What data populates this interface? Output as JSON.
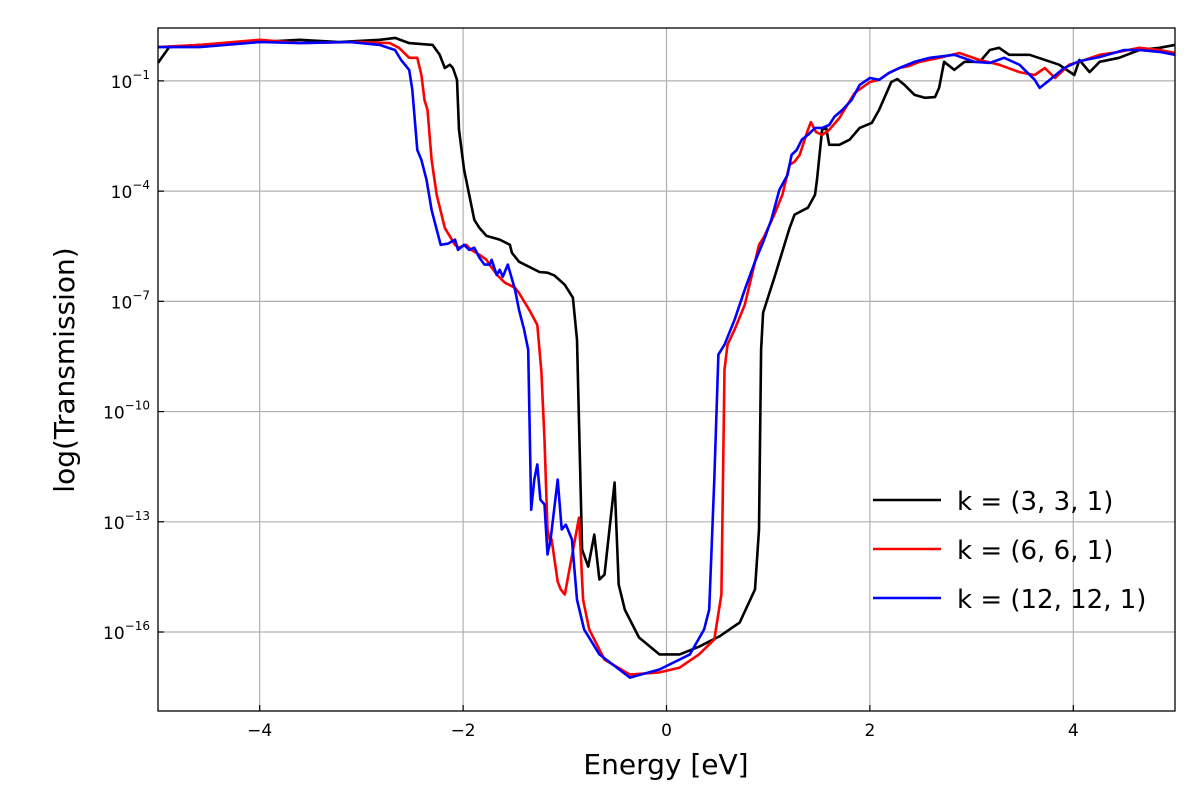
{
  "chart_data": {
    "type": "line",
    "title": "",
    "xlabel": "Energy [eV]",
    "ylabel": "log(Transmission)",
    "xlim": [
      -5,
      5
    ],
    "ylim_log10": [
      -18.15,
      0.44
    ],
    "y_scale": "log",
    "grid": true,
    "legend_placement": "lower-right",
    "x_ticks": [
      {
        "value": -4,
        "label": "−4"
      },
      {
        "value": -2,
        "label": "−2"
      },
      {
        "value": 0,
        "label": "0"
      },
      {
        "value": 2,
        "label": "2"
      },
      {
        "value": 4,
        "label": "4"
      }
    ],
    "y_ticks": [
      {
        "value_log10": -1,
        "base": "10",
        "exp": "−1"
      },
      {
        "value_log10": -4,
        "base": "10",
        "exp": "−4"
      },
      {
        "value_log10": -7,
        "base": "10",
        "exp": "−7"
      },
      {
        "value_log10": -10,
        "base": "10",
        "exp": "−10"
      },
      {
        "value_log10": -13,
        "base": "10",
        "exp": "−13"
      },
      {
        "value_log10": -16,
        "base": "10",
        "exp": "−16"
      }
    ],
    "series": [
      {
        "name": "k = (3, 3, 1)",
        "color": "#000000",
        "x": [
          -5.0,
          -4.89,
          -4.59,
          -4.0,
          -3.61,
          -3.22,
          -2.82,
          -2.67,
          -2.53,
          -2.3,
          -2.23,
          -2.18,
          -2.13,
          -2.1,
          -2.06,
          -2.04,
          -1.99,
          -1.94,
          -1.89,
          -1.84,
          -1.77,
          -1.64,
          -1.54,
          -1.52,
          -1.45,
          -1.25,
          -1.17,
          -1.1,
          -1.0,
          -0.92,
          -0.88,
          -0.83,
          -0.77,
          -0.71,
          -0.66,
          -0.61,
          -0.51,
          -0.47,
          -0.41,
          -0.27,
          -0.07,
          0.13,
          0.32,
          0.52,
          0.72,
          0.87,
          0.91,
          0.93,
          0.95,
          0.99,
          1.06,
          1.21,
          1.26,
          1.39,
          1.46,
          1.48,
          1.53,
          1.57,
          1.6,
          1.7,
          1.8,
          1.9,
          2.02,
          2.09,
          2.21,
          2.27,
          2.34,
          2.44,
          2.54,
          2.64,
          2.68,
          2.73,
          2.83,
          2.93,
          3.08,
          3.18,
          3.27,
          3.37,
          3.57,
          3.86,
          4.01,
          4.06,
          4.16,
          4.26,
          4.45,
          4.65,
          4.85,
          5.0
        ],
        "log10_T": [
          -0.51,
          -0.08,
          -0.02,
          0.06,
          0.12,
          0.06,
          0.12,
          0.17,
          0.03,
          -0.02,
          -0.29,
          -0.65,
          -0.56,
          -0.65,
          -0.97,
          -2.33,
          -3.42,
          -4.1,
          -4.78,
          -5.0,
          -5.22,
          -5.32,
          -5.46,
          -5.68,
          -5.92,
          -6.2,
          -6.22,
          -6.3,
          -6.55,
          -6.9,
          -8.04,
          -13.76,
          -14.22,
          -13.35,
          -14.57,
          -14.44,
          -11.93,
          -14.71,
          -15.39,
          -16.15,
          -16.61,
          -16.61,
          -16.4,
          -16.12,
          -15.74,
          -14.84,
          -13.21,
          -8.32,
          -7.31,
          -6.96,
          -6.36,
          -5.0,
          -4.64,
          -4.45,
          -4.1,
          -3.69,
          -2.33,
          -2.28,
          -2.74,
          -2.74,
          -2.6,
          -2.28,
          -2.14,
          -1.79,
          -1.03,
          -0.95,
          -1.11,
          -1.38,
          -1.46,
          -1.44,
          -1.19,
          -0.48,
          -0.7,
          -0.48,
          -0.48,
          -0.16,
          -0.1,
          -0.29,
          -0.29,
          -0.56,
          -0.84,
          -0.43,
          -0.76,
          -0.48,
          -0.37,
          -0.16,
          -0.1,
          -0.02
        ]
      },
      {
        "name": "k = (6, 6, 1)",
        "color": "#ff0000",
        "x": [
          -5.0,
          -4.59,
          -4.0,
          -3.61,
          -3.02,
          -2.72,
          -2.63,
          -2.53,
          -2.45,
          -2.41,
          -2.38,
          -2.35,
          -2.31,
          -2.26,
          -2.18,
          -2.08,
          -2.04,
          -1.97,
          -1.92,
          -1.84,
          -1.77,
          -1.74,
          -1.66,
          -1.59,
          -1.49,
          -1.45,
          -1.35,
          -1.27,
          -1.23,
          -1.2,
          -1.17,
          -1.14,
          -1.13,
          -1.07,
          -1.04,
          -1.0,
          -0.86,
          -0.82,
          -0.76,
          -0.61,
          -0.36,
          -0.07,
          0.13,
          0.32,
          0.47,
          0.54,
          0.57,
          0.6,
          0.67,
          0.77,
          0.84,
          0.91,
          0.96,
          1.06,
          1.14,
          1.21,
          1.26,
          1.31,
          1.39,
          1.42,
          1.47,
          1.53,
          1.6,
          1.7,
          1.85,
          2.0,
          2.09,
          2.19,
          2.29,
          2.39,
          2.49,
          2.68,
          2.88,
          3.08,
          3.27,
          3.47,
          3.62,
          3.72,
          3.82,
          3.96,
          4.11,
          4.26,
          4.45,
          4.65,
          4.85,
          5.0
        ],
        "log10_T": [
          -0.08,
          -0.02,
          0.12,
          0.03,
          0.06,
          0.03,
          -0.1,
          -0.37,
          -0.37,
          -0.84,
          -1.52,
          -1.79,
          -3.15,
          -4.1,
          -5.0,
          -5.46,
          -5.54,
          -5.46,
          -5.6,
          -5.73,
          -5.87,
          -6.0,
          -6.3,
          -6.49,
          -6.63,
          -6.77,
          -7.23,
          -7.64,
          -8.92,
          -10.77,
          -13.21,
          -13.62,
          -13.48,
          -14.63,
          -14.84,
          -14.98,
          -12.89,
          -15.12,
          -15.93,
          -16.75,
          -17.16,
          -17.1,
          -16.97,
          -16.61,
          -16.2,
          -14.98,
          -8.86,
          -8.18,
          -7.77,
          -7.09,
          -6.28,
          -5.46,
          -5.24,
          -4.64,
          -4.1,
          -3.28,
          -3.2,
          -3.01,
          -2.33,
          -2.12,
          -2.39,
          -2.47,
          -2.33,
          -2.01,
          -1.33,
          -1.03,
          -0.97,
          -0.78,
          -0.65,
          -0.59,
          -0.48,
          -0.37,
          -0.24,
          -0.43,
          -0.56,
          -0.76,
          -0.84,
          -0.65,
          -0.92,
          -0.56,
          -0.43,
          -0.29,
          -0.21,
          -0.1,
          -0.16,
          -0.24
        ]
      },
      {
        "name": "k = (12, 12, 1)",
        "color": "#0000ff",
        "x": [
          -5.0,
          -4.59,
          -4.0,
          -3.61,
          -3.12,
          -2.82,
          -2.67,
          -2.61,
          -2.53,
          -2.5,
          -2.45,
          -2.41,
          -2.36,
          -2.31,
          -2.26,
          -2.22,
          -2.15,
          -2.08,
          -2.05,
          -1.99,
          -1.94,
          -1.89,
          -1.84,
          -1.79,
          -1.74,
          -1.72,
          -1.67,
          -1.64,
          -1.61,
          -1.56,
          -1.49,
          -1.45,
          -1.4,
          -1.36,
          -1.33,
          -1.3,
          -1.27,
          -1.24,
          -1.2,
          -1.17,
          -1.14,
          -1.07,
          -1.03,
          -0.99,
          -0.97,
          -0.93,
          -0.88,
          -0.81,
          -0.66,
          -0.36,
          -0.07,
          0.23,
          0.37,
          0.42,
          0.47,
          0.51,
          0.57,
          0.67,
          0.77,
          0.87,
          0.96,
          1.03,
          1.11,
          1.19,
          1.23,
          1.28,
          1.33,
          1.39,
          1.46,
          1.53,
          1.6,
          1.65,
          1.73,
          1.82,
          1.9,
          2.0,
          2.09,
          2.19,
          2.29,
          2.44,
          2.59,
          2.83,
          3.03,
          3.18,
          3.32,
          3.47,
          3.62,
          3.67,
          3.77,
          3.91,
          4.06,
          4.26,
          4.5,
          4.65,
          4.85,
          5.0
        ],
        "log10_T": [
          -0.08,
          -0.08,
          0.06,
          0.03,
          0.06,
          -0.02,
          -0.16,
          -0.43,
          -0.7,
          -1.24,
          -2.88,
          -3.15,
          -3.69,
          -4.51,
          -5.05,
          -5.46,
          -5.43,
          -5.32,
          -5.6,
          -5.46,
          -5.6,
          -5.54,
          -5.81,
          -6.0,
          -6.0,
          -5.87,
          -6.28,
          -6.14,
          -6.33,
          -6.0,
          -6.68,
          -7.23,
          -7.77,
          -8.32,
          -12.67,
          -11.85,
          -11.44,
          -12.4,
          -12.53,
          -13.89,
          -13.48,
          -11.85,
          -13.21,
          -13.08,
          -13.21,
          -13.48,
          -15.12,
          -15.93,
          -16.61,
          -17.24,
          -17.02,
          -16.61,
          -15.93,
          -15.39,
          -11.85,
          -8.45,
          -8.18,
          -7.5,
          -6.68,
          -5.92,
          -5.32,
          -4.78,
          -3.96,
          -3.56,
          -3.01,
          -2.88,
          -2.6,
          -2.47,
          -2.28,
          -2.28,
          -2.2,
          -1.98,
          -1.79,
          -1.52,
          -1.11,
          -0.92,
          -0.97,
          -0.78,
          -0.65,
          -0.48,
          -0.37,
          -0.29,
          -0.48,
          -0.51,
          -0.37,
          -0.56,
          -0.97,
          -1.19,
          -0.97,
          -0.65,
          -0.46,
          -0.35,
          -0.16,
          -0.16,
          -0.21,
          -0.29
        ]
      }
    ]
  }
}
